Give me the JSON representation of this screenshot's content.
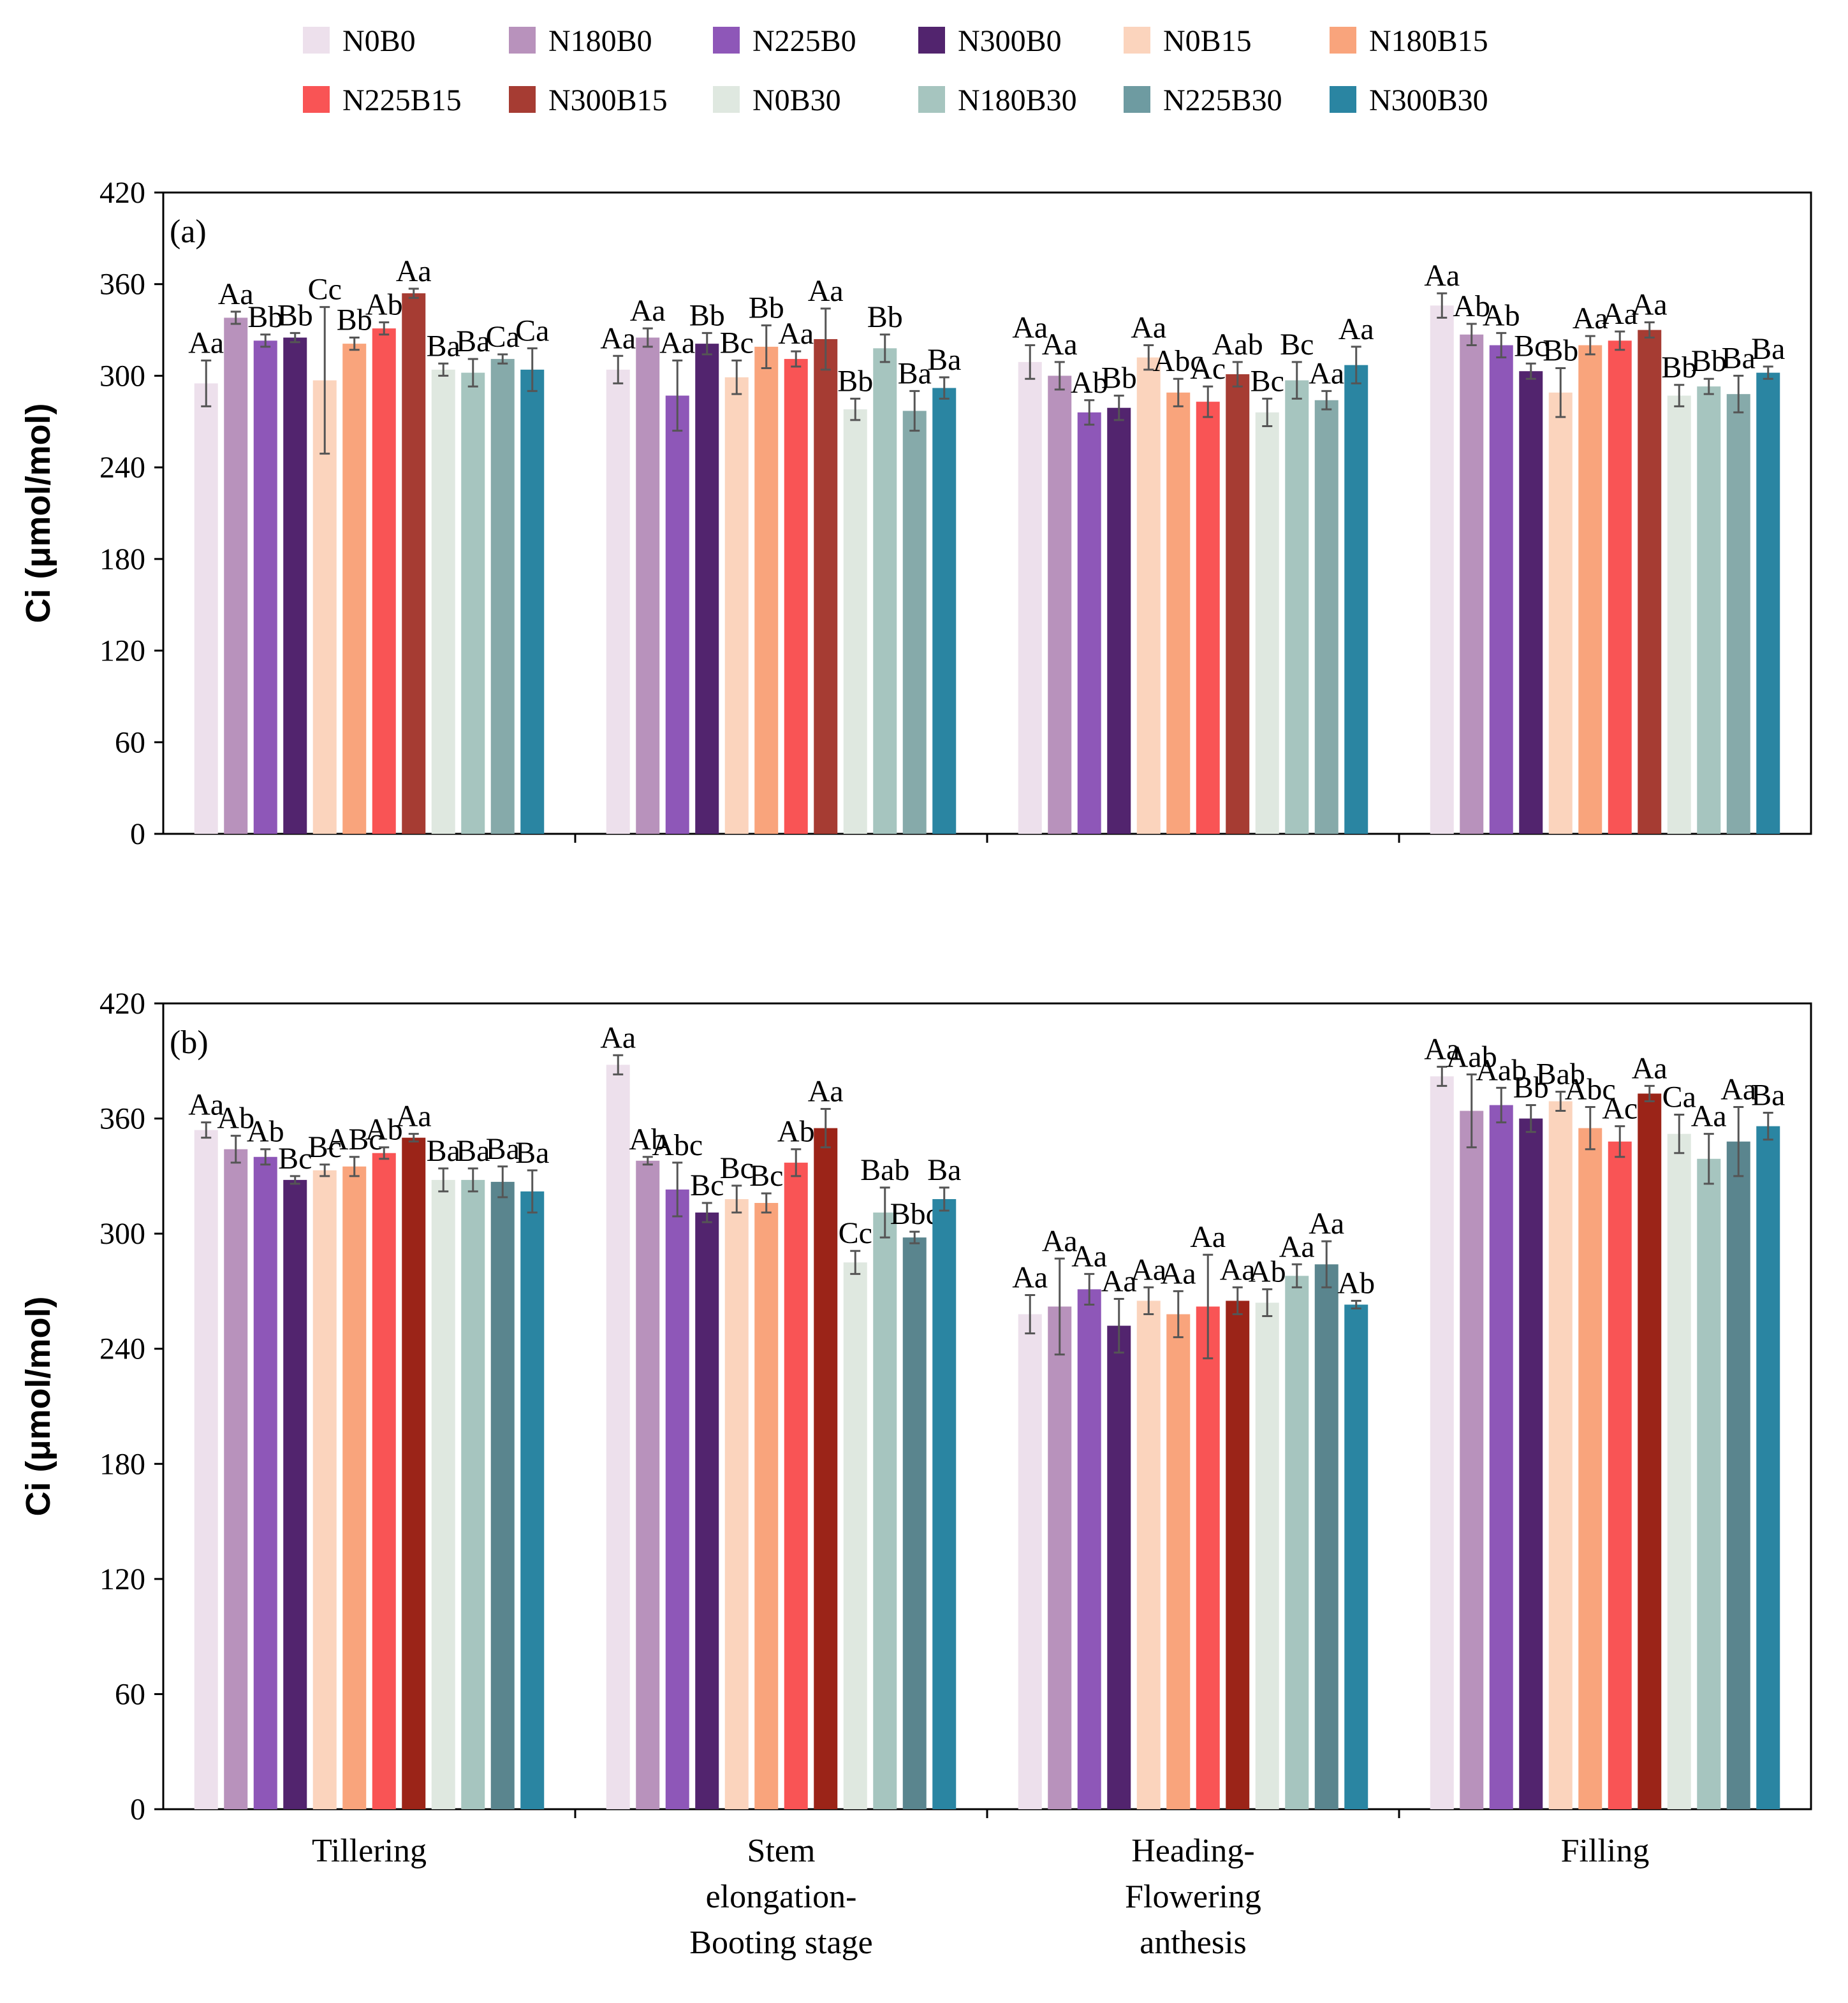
{
  "legend": [
    {
      "name": "N0B0",
      "color": "#ede0ec"
    },
    {
      "name": "N180B0",
      "color": "#b892bc"
    },
    {
      "name": "N225B0",
      "color": "#8e57b8"
    },
    {
      "name": "N300B0",
      "color": "#52246e"
    },
    {
      "name": "N0B15",
      "color": "#fbd4bd"
    },
    {
      "name": "N180B15",
      "color": "#f9a47c"
    },
    {
      "name": "N225B15",
      "color": "#f95455"
    },
    {
      "name": "N300B15",
      "color": "#a63c33"
    },
    {
      "name": "N0B30",
      "color": "#dfe8e0"
    },
    {
      "name": "N180B30",
      "color": "#a6c5bf"
    },
    {
      "name": "N225B30",
      "color": "#6e9ba1"
    },
    {
      "name": "N300B30",
      "color": "#2a85a2"
    }
  ],
  "chart_data": [
    {
      "type": "bar",
      "panel_label": "(a)",
      "ylabel": "Ci (μmol/mol)",
      "ylim": [
        0,
        420
      ],
      "yticks": [
        0,
        60,
        120,
        180,
        240,
        300,
        360,
        420
      ],
      "categories": [
        "Tillering",
        "Stem elongation-Booting stage",
        "Heading-Flowering anthesis",
        "Filling"
      ],
      "series_colors": [
        "#ede0ec",
        "#b892bc",
        "#8e57b8",
        "#52246e",
        "#fbd4bd",
        "#f9a47c",
        "#f95455",
        "#a63c33",
        "#dfe8e0",
        "#a6c5bf",
        "#86aaaa",
        "#2a85a2"
      ],
      "series": [
        {
          "name": "N0B0",
          "values": [
            295,
            304,
            309,
            346
          ],
          "errors": [
            15,
            9,
            11,
            8
          ],
          "labels": [
            "Aa",
            "Aa",
            "Aa",
            "Aa"
          ]
        },
        {
          "name": "N180B0",
          "values": [
            338,
            325,
            300,
            327
          ],
          "errors": [
            4,
            6,
            9,
            7
          ],
          "labels": [
            "Aa",
            "Aa",
            "Aa",
            "Ab"
          ]
        },
        {
          "name": "N225B0",
          "values": [
            323,
            287,
            276,
            320
          ],
          "errors": [
            4,
            23,
            8,
            8
          ],
          "labels": [
            "Bb",
            "Aa",
            "Ab",
            "Ab"
          ]
        },
        {
          "name": "N300B0",
          "values": [
            325,
            321,
            279,
            303
          ],
          "errors": [
            3,
            7,
            8,
            5
          ],
          "labels": [
            "Bb",
            "Bb",
            "Bb",
            "Bc"
          ]
        },
        {
          "name": "N0B15",
          "values": [
            297,
            299,
            312,
            289
          ],
          "errors": [
            48,
            11,
            8,
            16
          ],
          "labels": [
            "Cc",
            "Bc",
            "Aa",
            "Bb"
          ]
        },
        {
          "name": "N180B15",
          "values": [
            321,
            319,
            289,
            320
          ],
          "errors": [
            4,
            14,
            9,
            6
          ],
          "labels": [
            "Bb",
            "Bb",
            "Abc",
            "Aa"
          ]
        },
        {
          "name": "N225B15",
          "values": [
            331,
            311,
            283,
            323
          ],
          "errors": [
            4,
            5,
            10,
            6
          ],
          "labels": [
            "Ab",
            "Aa",
            "Ac",
            "Aa"
          ]
        },
        {
          "name": "N300B15",
          "values": [
            354,
            324,
            301,
            330
          ],
          "errors": [
            3,
            20,
            8,
            5
          ],
          "labels": [
            "Aa",
            "Aa",
            "Aab",
            "Aa"
          ]
        },
        {
          "name": "N0B30",
          "values": [
            304,
            278,
            276,
            287
          ],
          "errors": [
            4,
            7,
            9,
            7
          ],
          "labels": [
            "Ba",
            "Bb",
            "Bc",
            "Bb"
          ]
        },
        {
          "name": "N180B30",
          "values": [
            302,
            318,
            297,
            293
          ],
          "errors": [
            9,
            9,
            12,
            5
          ],
          "labels": [
            "Ba",
            "Bb",
            "Bc",
            "Bb"
          ]
        },
        {
          "name": "N225B30",
          "values": [
            311,
            277,
            284,
            288
          ],
          "errors": [
            3,
            13,
            6,
            12
          ],
          "labels": [
            "Ca",
            "Ba",
            "Aa",
            "Ba"
          ]
        },
        {
          "name": "N300B30",
          "values": [
            304,
            292,
            307,
            302
          ],
          "errors": [
            14,
            7,
            12,
            4
          ],
          "labels": [
            "Ca",
            "Ba",
            "Aa",
            "Ba"
          ]
        }
      ]
    },
    {
      "type": "bar",
      "panel_label": "(b)",
      "ylabel": "Ci (μmol/mol)",
      "ylim": [
        0,
        420
      ],
      "yticks": [
        0,
        60,
        120,
        180,
        240,
        300,
        360,
        420
      ],
      "categories": [
        "Tillering",
        "Stem elongation-Booting stage",
        "Heading-Flowering anthesis",
        "Filling"
      ],
      "category_lines": [
        [
          "Tillering"
        ],
        [
          "Stem",
          "elongation-",
          "Booting stage"
        ],
        [
          "Heading-",
          "Flowering",
          "anthesis"
        ],
        [
          "Filling"
        ]
      ],
      "series_colors": [
        "#ede0ec",
        "#b892bc",
        "#8e57b8",
        "#52246e",
        "#fbd4bd",
        "#f9a47c",
        "#f95455",
        "#9b2418",
        "#dfe8e0",
        "#a6c5bf",
        "#5a858e",
        "#2a85a2"
      ],
      "series": [
        {
          "name": "N0B0",
          "values": [
            354,
            388,
            258,
            382
          ],
          "errors": [
            4,
            5,
            10,
            5
          ],
          "labels": [
            "Aa",
            "Aa",
            "Aa",
            "Aa"
          ]
        },
        {
          "name": "N180B0",
          "values": [
            344,
            338,
            262,
            364
          ],
          "errors": [
            7,
            2,
            25,
            19
          ],
          "labels": [
            "Ab",
            "Ab",
            "Aa",
            "Aab"
          ]
        },
        {
          "name": "N225B0",
          "values": [
            340,
            323,
            271,
            367
          ],
          "errors": [
            4,
            14,
            8,
            9
          ],
          "labels": [
            "Ab",
            "Abc",
            "Aa",
            "Aab"
          ]
        },
        {
          "name": "N300B0",
          "values": [
            328,
            311,
            252,
            360
          ],
          "errors": [
            2,
            5,
            14,
            7
          ],
          "labels": [
            "Bc",
            "Bc",
            "Aa",
            "Bb"
          ]
        },
        {
          "name": "N0B15",
          "values": [
            333,
            318,
            265,
            369
          ],
          "errors": [
            3,
            7,
            7,
            5
          ],
          "labels": [
            "Bc",
            "Bc",
            "Aa",
            "Bab"
          ]
        },
        {
          "name": "N180B15",
          "values": [
            335,
            316,
            258,
            355
          ],
          "errors": [
            5,
            5,
            12,
            11
          ],
          "labels": [
            "ABc",
            "Bc",
            "Aa",
            "Abc"
          ]
        },
        {
          "name": "N225B15",
          "values": [
            342,
            337,
            262,
            348
          ],
          "errors": [
            3,
            7,
            27,
            8
          ],
          "labels": [
            "Ab",
            "Ab",
            "Aa",
            "Ac"
          ]
        },
        {
          "name": "N300B15",
          "values": [
            350,
            355,
            265,
            373
          ],
          "errors": [
            2,
            10,
            7,
            4
          ],
          "labels": [
            "Aa",
            "Aa",
            "Aa",
            "Aa"
          ]
        },
        {
          "name": "N0B30",
          "values": [
            328,
            285,
            264,
            352
          ],
          "errors": [
            6,
            6,
            7,
            10
          ],
          "labels": [
            "Ba",
            "Cc",
            "Ab",
            "Ca"
          ]
        },
        {
          "name": "N180B30",
          "values": [
            328,
            311,
            278,
            339
          ],
          "errors": [
            6,
            13,
            6,
            13
          ],
          "labels": [
            "Ba",
            "Bab",
            "Aa",
            "Aa"
          ]
        },
        {
          "name": "N225B30",
          "values": [
            327,
            298,
            284,
            348
          ],
          "errors": [
            8,
            3,
            12,
            18
          ],
          "labels": [
            "Ba",
            "Bbc",
            "Aa",
            "Aa"
          ]
        },
        {
          "name": "N300B30",
          "values": [
            322,
            318,
            263,
            356
          ],
          "errors": [
            11,
            6,
            2,
            7
          ],
          "labels": [
            "Ba",
            "Ba",
            "Ab",
            "Ba"
          ]
        }
      ]
    }
  ]
}
